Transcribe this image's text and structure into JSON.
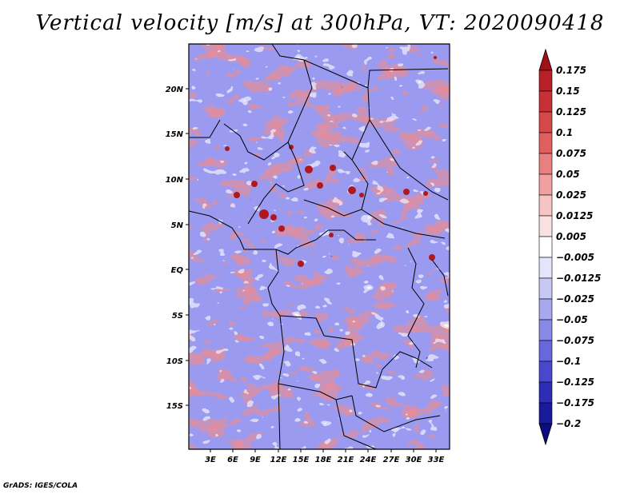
{
  "title": "Vertical velocity [m/s] at 300hPa, VT: 2020090418",
  "credit": "GrADS: IGES/COLA",
  "lat_labels": [
    "20N",
    "15N",
    "10N",
    "5N",
    "EQ",
    "5S",
    "10S",
    "15S"
  ],
  "lon_labels": [
    "3E",
    "6E",
    "9E",
    "12E",
    "15E",
    "18E",
    "21E",
    "24E",
    "27E",
    "30E",
    "33E"
  ],
  "colorbar": {
    "labels": [
      "0.175",
      "0.15",
      "0.125",
      "0.1",
      "0.075",
      "0.05",
      "0.025",
      "0.0125",
      "0.005",
      "−0.005",
      "−0.0125",
      "−0.025",
      "−0.05",
      "−0.075",
      "−0.1",
      "−0.125",
      "−0.175",
      "−0.2"
    ],
    "colors": [
      "#a01018",
      "#b82028",
      "#c83038",
      "#d44848",
      "#e06060",
      "#e88080",
      "#f0a0a0",
      "#f6c4c4",
      "#fbe2e2",
      "#ffffff",
      "#e4e4fa",
      "#c8c8f4",
      "#a8a8ee",
      "#8888e6",
      "#6868dc",
      "#4848cc",
      "#2c2cb4",
      "#1a1a9c",
      "#0c0c80"
    ]
  }
}
